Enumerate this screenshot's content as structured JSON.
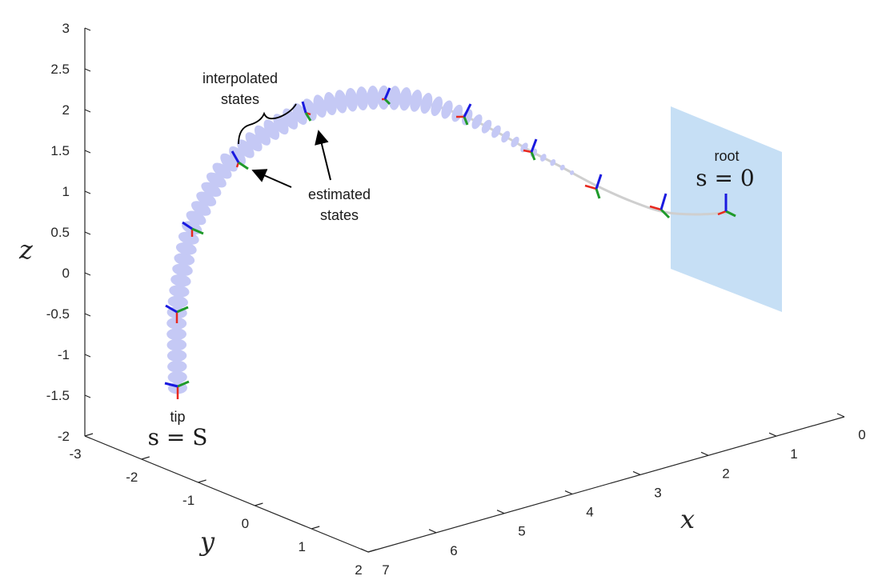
{
  "chart_data": {
    "type": "line",
    "subtype": "3d-curve",
    "title": "",
    "xlabel": "x",
    "ylabel": "y",
    "zlabel": "z",
    "xlim": [
      0,
      7
    ],
    "ylim": [
      -3,
      2
    ],
    "zlim": [
      -2,
      3
    ],
    "x_ticks": [
      "0",
      "1",
      "2",
      "3",
      "4",
      "5",
      "6",
      "7"
    ],
    "y_ticks": [
      "-3",
      "-2",
      "-1",
      "0",
      "1",
      "2"
    ],
    "z_ticks": [
      "-2",
      "-1.5",
      "-1",
      "-0.5",
      "0",
      "0.5",
      "1",
      "1.5",
      "2",
      "2.5",
      "3"
    ],
    "grid": false,
    "colors": {
      "ellipse": "#c5c9f5",
      "curve": "#cfcfcf",
      "frame_x": "#e8281e",
      "frame_y": "#1f9a2a",
      "frame_z": "#1a1adf",
      "plane": "#c6dff5",
      "axis": "#262626"
    },
    "annotations": {
      "interpolated": [
        "interpolated",
        "states"
      ],
      "estimated": [
        "estimated",
        "states"
      ],
      "root_label": "root",
      "root_eq": "s = 0",
      "tip_label": "tip",
      "tip_eq": "s = S"
    }
  }
}
